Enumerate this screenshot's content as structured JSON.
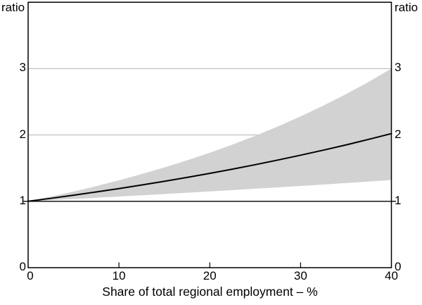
{
  "chart_data": {
    "type": "line",
    "subtype": "line-with-confidence-band",
    "title": "",
    "xlabel": "Share of total regional employment – %",
    "y_unit_left": "ratio",
    "y_unit_right": "ratio",
    "xlim": [
      0,
      40
    ],
    "ylim": [
      0,
      4
    ],
    "x_tick_values": [
      0,
      10,
      20,
      30,
      40
    ],
    "x_tick_labels": [
      "0",
      "10",
      "20",
      "30",
      "40"
    ],
    "y_tick_values": [
      0,
      1,
      2,
      3
    ],
    "y_tick_labels": [
      "0",
      "1",
      "2",
      "3"
    ],
    "grid_y_values": [
      2,
      3
    ],
    "reference_line_y": 1,
    "x": [
      0,
      2.5,
      5,
      7.5,
      10,
      12.5,
      15,
      17.5,
      20,
      22.5,
      25,
      27.5,
      30,
      32.5,
      35,
      37.5,
      40
    ],
    "series": [
      {
        "name": "central estimate",
        "values": [
          1.0,
          1.045,
          1.092,
          1.141,
          1.192,
          1.246,
          1.302,
          1.36,
          1.421,
          1.485,
          1.552,
          1.622,
          1.695,
          1.771,
          1.85,
          1.934,
          2.02
        ]
      },
      {
        "name": "confidence band upper",
        "values": [
          1.0,
          1.071,
          1.147,
          1.229,
          1.316,
          1.41,
          1.51,
          1.617,
          1.732,
          1.855,
          1.987,
          2.128,
          2.28,
          2.442,
          2.615,
          2.801,
          3.0
        ]
      },
      {
        "name": "confidence band lower",
        "values": [
          1.0,
          1.018,
          1.035,
          1.053,
          1.072,
          1.091,
          1.11,
          1.129,
          1.149,
          1.169,
          1.19,
          1.21,
          1.232,
          1.253,
          1.275,
          1.298,
          1.32
        ]
      }
    ],
    "legend": "none",
    "colors": {
      "line": "#000000",
      "band": "#d2d2d2",
      "gridline": "#b3b3b3",
      "frame": "#000000",
      "background": "#ffffff"
    }
  }
}
